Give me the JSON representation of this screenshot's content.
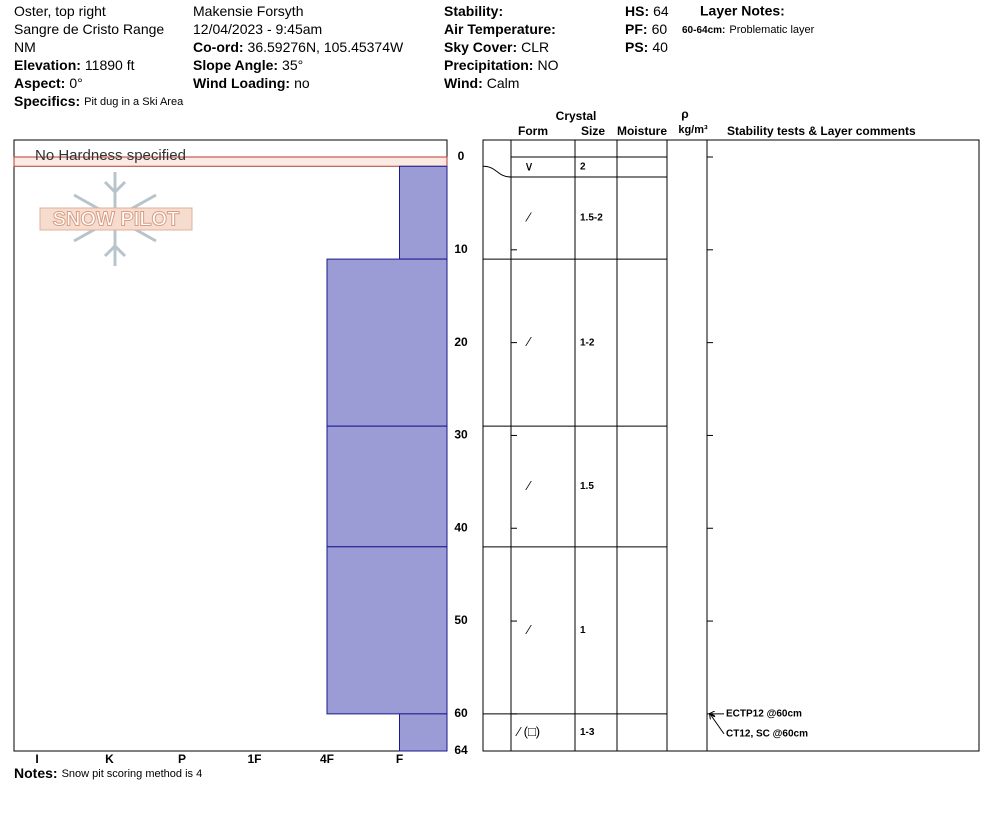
{
  "header": {
    "columns": [
      [
        {
          "value": "Oster, top right"
        },
        {
          "value": "Sangre de Cristo Range"
        },
        {
          "value": "NM"
        },
        {
          "label": "Elevation:",
          "value": "11890 ft"
        },
        {
          "label": "Aspect:",
          "value": "0°"
        }
      ],
      [
        {
          "value": "Makensie Forsyth"
        },
        {
          "value": "12/04/2023 - 9:45am"
        },
        {
          "label": "Co-ord:",
          "value": "36.59276N, 105.45374W"
        },
        {
          "label": "Slope Angle:",
          "value": "35°"
        },
        {
          "label": "Wind Loading:",
          "value": "no"
        }
      ],
      [
        {
          "label": "Stability:"
        },
        {
          "label": "Air Temperature:"
        },
        {
          "label": "Sky Cover:",
          "value": "CLR"
        },
        {
          "label": "Precipitation:",
          "value": "NO"
        },
        {
          "label": "Wind:",
          "value": "Calm"
        }
      ],
      [
        {
          "label": "HS:",
          "value": "64"
        },
        {
          "label": "PF:",
          "value": "60"
        },
        {
          "label": "PS:",
          "value": "40"
        }
      ]
    ],
    "specifics": {
      "label": "Specifics:",
      "value": "Pit dug in a Ski Area"
    },
    "layer_notes": {
      "title": "Layer Notes:",
      "items": [
        {
          "label": "60-64cm:",
          "value": "Problematic layer"
        }
      ]
    }
  },
  "watermark": "SNOW PILOT",
  "profile": {
    "depth_axis": {
      "lim": [
        0,
        64
      ],
      "ticks": [
        0,
        10,
        20,
        30,
        40,
        50,
        60,
        64
      ]
    },
    "hardness_categories": [
      "I",
      "K",
      "P",
      "1F",
      "4F",
      "F"
    ],
    "columns": {
      "crystal": "Crystal",
      "form": "Form",
      "size": "Size",
      "moisture": "Moisture",
      "density_symbol": "ρ",
      "density_unit": "kg/m³",
      "comments": "Stability tests & Layer comments"
    },
    "layers": [
      {
        "top": 0,
        "bottom": 1,
        "hardness_note": "No Hardness specified",
        "form": "∨",
        "size": "2"
      },
      {
        "top": 1,
        "bottom": 11,
        "hardness": "F",
        "form": "⁄",
        "size": "1.5-2"
      },
      {
        "top": 11,
        "bottom": 29,
        "hardness": "4F",
        "form": "⁄",
        "size": "1-2"
      },
      {
        "top": 29,
        "bottom": 42,
        "hardness": "4F",
        "form": "⁄",
        "size": "1.5"
      },
      {
        "top": 42,
        "bottom": 60,
        "hardness": "4F",
        "form": "⁄",
        "size": "1"
      },
      {
        "top": 60,
        "bottom": 64,
        "hardness": "F",
        "form": "⁄ (□)",
        "size": "1-3"
      }
    ],
    "stability_tests": [
      {
        "label": "ECTP12 @60cm",
        "depth": 60
      },
      {
        "label": "CT12, SC @60cm",
        "depth": 60
      }
    ]
  },
  "notes": {
    "label": "Notes:",
    "value": "Snow pit scoring method is 4"
  }
}
